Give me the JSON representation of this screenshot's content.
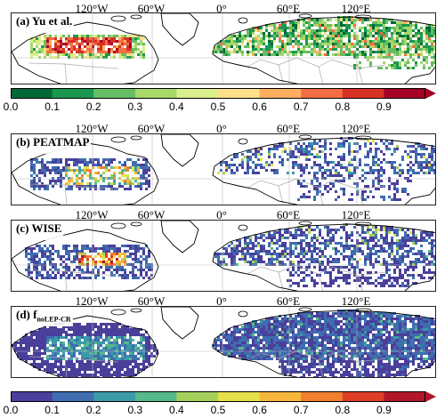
{
  "longitude_labels": [
    "120°W",
    "60°W",
    "0°",
    "60°E",
    "120°E"
  ],
  "panels": [
    {
      "label": "(a) Yu et al.",
      "sub": "",
      "palette": "greenred",
      "style": "yu"
    },
    {
      "label": "(b) PEATMAP",
      "sub": "",
      "palette": "purple",
      "style": "peatmap"
    },
    {
      "label": "(c) WISE",
      "sub": "",
      "palette": "purple",
      "style": "wise"
    },
    {
      "label": "(d) f",
      "sub": "noLEP-CR",
      "palette": "purple",
      "style": "flep"
    }
  ],
  "colorbars": [
    {
      "ticks": [
        "0.0",
        "0.1",
        "0.2",
        "0.3",
        "0.4",
        "0.5",
        "0.6",
        "0.7",
        "0.8",
        "0.9"
      ],
      "colors": [
        "#006837",
        "#1a9850",
        "#66bd63",
        "#a6d96a",
        "#d9ef8b",
        "#fee08b",
        "#fdae61",
        "#f46d43",
        "#d73027",
        "#a50026"
      ],
      "arrow": "#a50026"
    },
    {
      "ticks": [
        "0.0",
        "0.1",
        "0.2",
        "0.3",
        "0.4",
        "0.5",
        "0.6",
        "0.7",
        "0.8",
        "0.9"
      ],
      "colors": [
        "#4a3f9a",
        "#3f6db0",
        "#3a9aa8",
        "#56b98a",
        "#a3d15c",
        "#e6e04a",
        "#f6b73c",
        "#f07f2e",
        "#dd3f26",
        "#b0182a"
      ],
      "arrow": "#b0182a"
    }
  ],
  "colors": {
    "frame": "#222222",
    "coast": "#000000",
    "border": "#aaaaaa",
    "grid": "#bbbbbb"
  }
}
